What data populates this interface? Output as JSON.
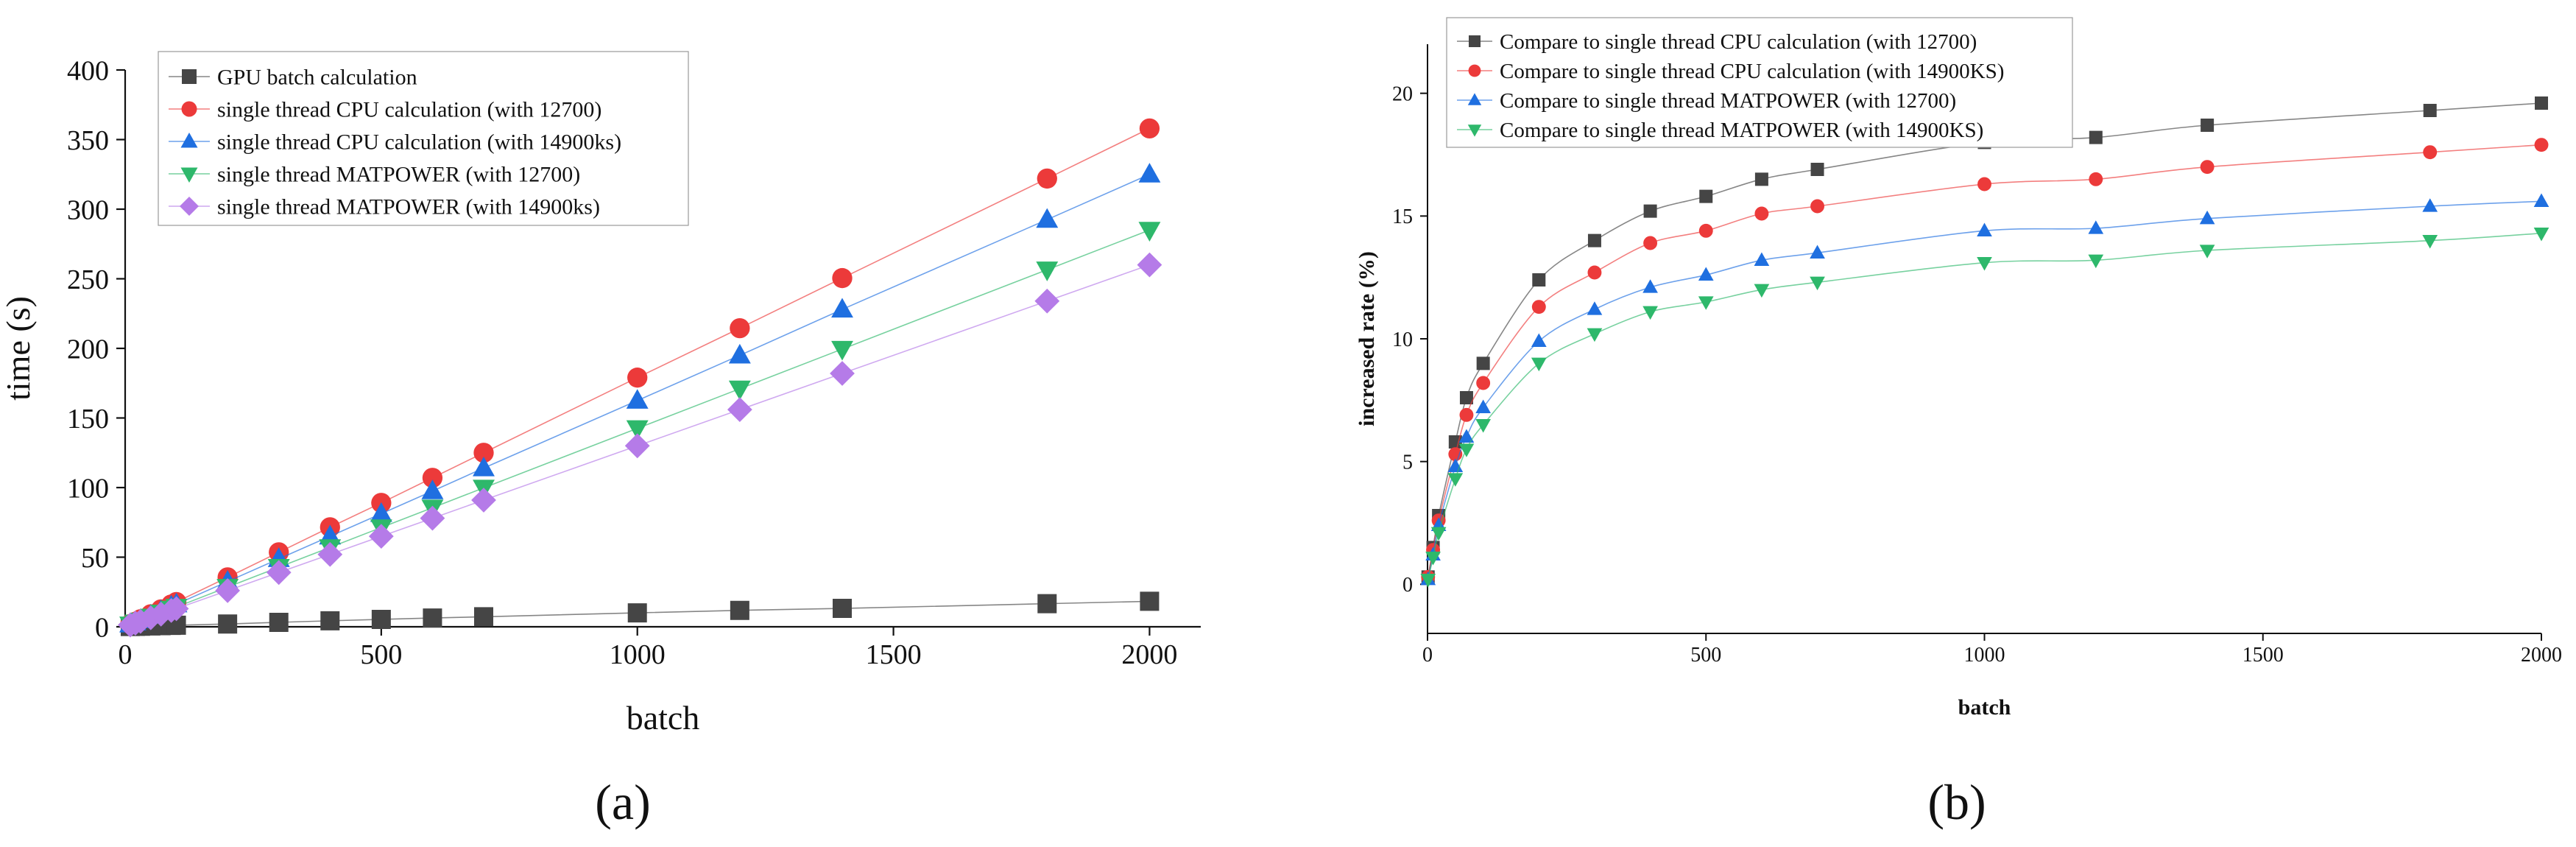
{
  "colors": {
    "gpu": "#454545",
    "cpu12700": "#ec3a3a",
    "cpu14900": "#1f6fe0",
    "mp12700": "#2eb86b",
    "mp14900": "#b57be8",
    "axis": "#111111"
  },
  "chart_data": [
    {
      "type": "line",
      "panel_label": "(a)",
      "title": "",
      "xlabel": "batch",
      "ylabel": "time (s)",
      "xlim": [
        0,
        2100
      ],
      "ylim": [
        0,
        400
      ],
      "xticks": [
        0,
        500,
        1000,
        1500,
        2000
      ],
      "yticks": [
        0,
        50,
        100,
        150,
        200,
        250,
        300,
        350,
        400
      ],
      "legend_position": "top-left",
      "grid": false,
      "x": [
        10,
        20,
        30,
        50,
        70,
        90,
        100,
        200,
        300,
        400,
        500,
        600,
        700,
        1000,
        1200,
        1400,
        1800,
        2000
      ],
      "series": [
        {
          "key": "gpu",
          "name": "GPU batch calculation",
          "marker": "square",
          "values": [
            0.2,
            0.3,
            0.4,
            0.6,
            0.8,
            1.0,
            1.1,
            2.0,
            3.2,
            4.3,
            5.3,
            6.3,
            7.2,
            10.0,
            11.8,
            13.2,
            16.6,
            18.3
          ]
        },
        {
          "key": "cpu12700",
          "name": "single thread CPU calculation (with 12700)",
          "marker": "circle",
          "values": [
            2,
            3.6,
            5.4,
            9,
            12.5,
            16,
            17.8,
            35.5,
            53.5,
            71.5,
            89,
            107,
            125,
            179,
            214.5,
            250.5,
            322,
            358
          ]
        },
        {
          "key": "cpu14900",
          "name": "single thread CPU calculation (with 14900ks)",
          "marker": "triangle-up",
          "values": [
            1.8,
            3.3,
            4.9,
            8.1,
            11.4,
            14.6,
            16.2,
            32.5,
            48.8,
            65,
            81.2,
            97.5,
            114,
            162.5,
            195,
            228,
            292.5,
            325
          ]
        },
        {
          "key": "mp12700",
          "name": "single thread MATPOWER (with 12700)",
          "marker": "triangle-down",
          "values": [
            1.5,
            2.9,
            4.3,
            7.1,
            10,
            12.8,
            14.2,
            28.5,
            42.8,
            57,
            71.3,
            85.5,
            99.8,
            142.5,
            171,
            199.5,
            256.5,
            285
          ]
        },
        {
          "key": "mp14900",
          "name": "single thread MATPOWER (with 14900ks)",
          "marker": "diamond",
          "values": [
            1.3,
            2.6,
            3.9,
            6.5,
            9.1,
            11.7,
            13,
            26,
            39,
            52,
            65,
            78,
            91,
            130,
            156,
            182,
            234,
            260
          ]
        }
      ]
    },
    {
      "type": "line",
      "panel_label": "(b)",
      "title": "",
      "xlabel": "batch",
      "ylabel": "increased rate (%)",
      "xlim": [
        0,
        2000
      ],
      "ylim": [
        -2,
        22
      ],
      "xticks": [
        0,
        500,
        1000,
        1500,
        2000
      ],
      "yticks": [
        0,
        5,
        10,
        15,
        20
      ],
      "legend_position": "top-left",
      "grid": false,
      "x": [
        1,
        10,
        20,
        50,
        70,
        100,
        200,
        300,
        400,
        500,
        600,
        700,
        1000,
        1200,
        1400,
        1800,
        2000
      ],
      "series": [
        {
          "key": "gpu",
          "name": "Compare to single thread CPU calculation (with 12700)",
          "marker": "square",
          "values": [
            0.3,
            1.5,
            2.8,
            5.8,
            7.6,
            9.0,
            12.4,
            14.0,
            15.2,
            15.8,
            16.5,
            16.9,
            18.0,
            18.2,
            18.7,
            19.3,
            19.6
          ]
        },
        {
          "key": "cpu12700",
          "name": "Compare to single thread CPU calculation (with 14900KS)",
          "marker": "circle",
          "values": [
            0.3,
            1.4,
            2.6,
            5.3,
            6.9,
            8.2,
            11.3,
            12.7,
            13.9,
            14.4,
            15.1,
            15.4,
            16.3,
            16.5,
            17.0,
            17.6,
            17.9
          ]
        },
        {
          "key": "cpu14900",
          "name": "Compare to single thread MATPOWER (with 12700)",
          "marker": "triangle-up",
          "values": [
            0.2,
            1.2,
            2.4,
            4.8,
            6.0,
            7.2,
            9.9,
            11.2,
            12.1,
            12.6,
            13.2,
            13.5,
            14.4,
            14.5,
            14.9,
            15.4,
            15.6
          ]
        },
        {
          "key": "mp12700",
          "name": "Compare to single thread MATPOWER (with 14900KS)",
          "marker": "triangle-down",
          "values": [
            0.2,
            1.1,
            2.1,
            4.3,
            5.5,
            6.5,
            9.0,
            10.2,
            11.1,
            11.5,
            12.0,
            12.3,
            13.1,
            13.2,
            13.6,
            14.0,
            14.3
          ]
        }
      ]
    }
  ]
}
